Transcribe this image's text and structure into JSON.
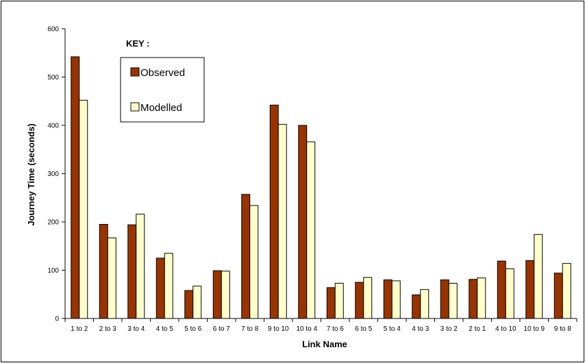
{
  "chart_data": {
    "type": "bar",
    "xlabel": "Link Name",
    "ylabel": "Journey Time (seconds)",
    "ylim": [
      0,
      600
    ],
    "yticks": [
      0,
      100,
      200,
      300,
      400,
      500,
      600
    ],
    "grid": false,
    "legend": {
      "title": "KEY :",
      "placement": "top-left"
    },
    "categories": [
      "1 to 2",
      "2 to 3",
      "3 to 4",
      "4 to 5",
      "5 to 6",
      "6 to 7",
      "7 to 8",
      "9 to 10",
      "10 to 4",
      "7 to 6",
      "6 to 5",
      "5 to 4",
      "4 to 3",
      "3 to 2",
      "2 to 1",
      "4 to 10",
      "10 to 9",
      "9 to 8"
    ],
    "series": [
      {
        "name": "Observed",
        "color": "#993300",
        "values": [
          542,
          195,
          194,
          125,
          58,
          99,
          257,
          442,
          400,
          64,
          75,
          80,
          49,
          80,
          81,
          119,
          120,
          94
        ]
      },
      {
        "name": "Modelled",
        "color": "#FFFFCC",
        "values": [
          452,
          167,
          216,
          135,
          67,
          98,
          234,
          402,
          366,
          73,
          85,
          78,
          60,
          73,
          84,
          103,
          174,
          114
        ]
      }
    ]
  }
}
